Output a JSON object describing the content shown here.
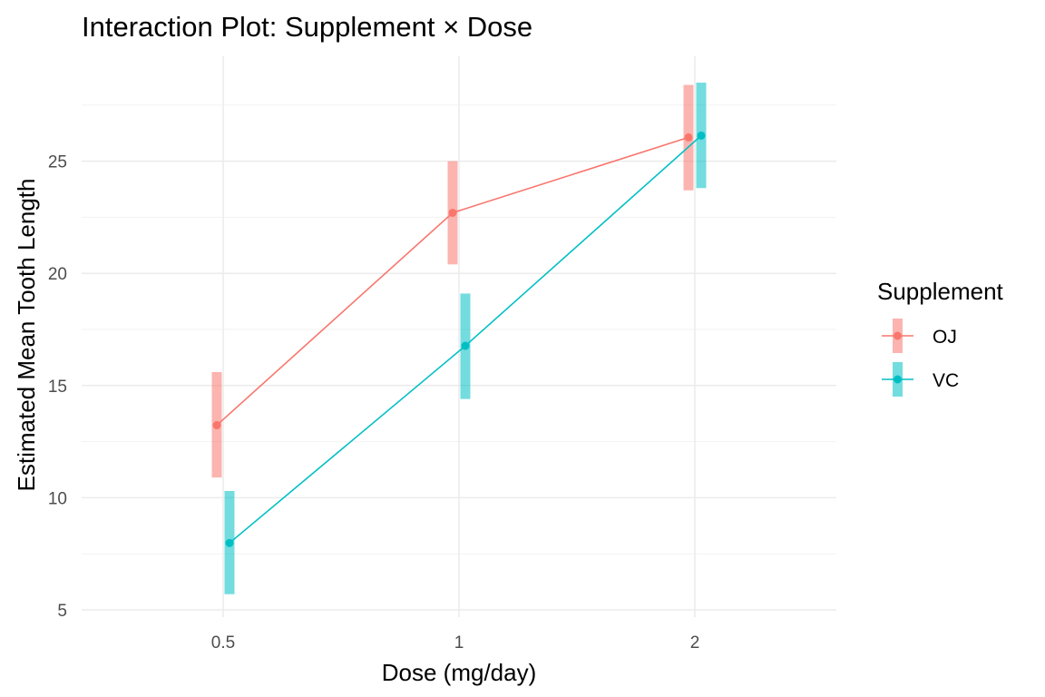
{
  "chart_data": {
    "type": "line",
    "title": "Interaction Plot: Supplement × Dose",
    "xlabel": "Dose (mg/day)",
    "ylabel": "Estimated Mean Tooth Length",
    "categories": [
      "0.5",
      "1",
      "2"
    ],
    "yticks": [
      5,
      10,
      15,
      20,
      25
    ],
    "ylim": [
      4.6,
      29.5
    ],
    "grid": true,
    "legend": {
      "title": "Supplement",
      "placement": "right"
    },
    "series": [
      {
        "name": "OJ",
        "color": "#F8766D",
        "dodge": -1,
        "values": [
          13.23,
          22.7,
          26.06
        ],
        "lower": [
          10.9,
          20.4,
          23.7
        ],
        "upper": [
          15.6,
          25.0,
          28.4
        ]
      },
      {
        "name": "VC",
        "color": "#00BFC4",
        "dodge": 1,
        "values": [
          7.98,
          16.77,
          26.14
        ],
        "lower": [
          5.7,
          14.4,
          23.8
        ],
        "upper": [
          10.3,
          19.1,
          28.5
        ]
      }
    ]
  }
}
